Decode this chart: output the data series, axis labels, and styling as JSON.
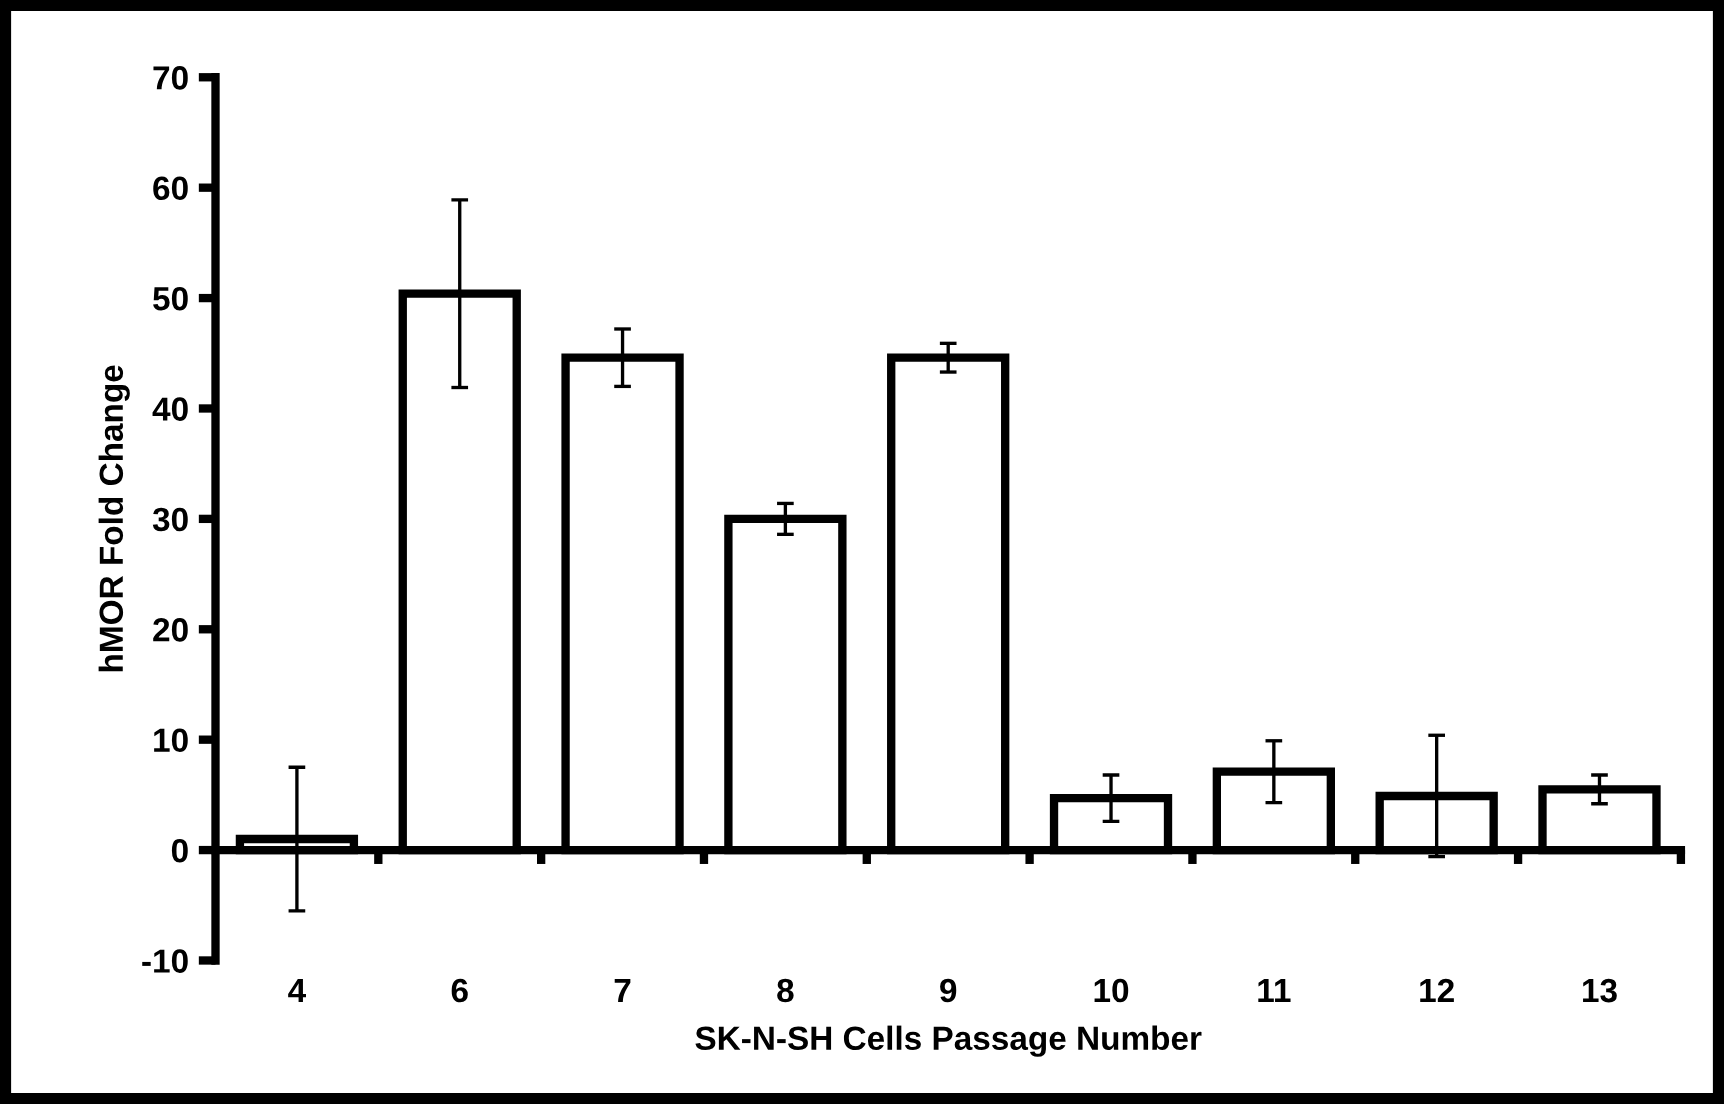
{
  "chart_data": {
    "type": "bar",
    "xlabel": "SK-N-SH Cells Passage Number",
    "ylabel": "hMOR Fold Change",
    "categories": [
      "4",
      "6",
      "7",
      "8",
      "9",
      "10",
      "11",
      "12",
      "13"
    ],
    "values": [
      1.0,
      50.4,
      44.6,
      30.0,
      44.6,
      4.7,
      7.1,
      4.9,
      5.5
    ],
    "errors": [
      6.5,
      8.5,
      2.6,
      1.4,
      1.3,
      2.1,
      2.8,
      5.5,
      1.3
    ],
    "color": "#ffffff",
    "ylim": [
      -10,
      70
    ],
    "yticks": [
      -10,
      0,
      10,
      20,
      30,
      40,
      50,
      60,
      70
    ]
  }
}
